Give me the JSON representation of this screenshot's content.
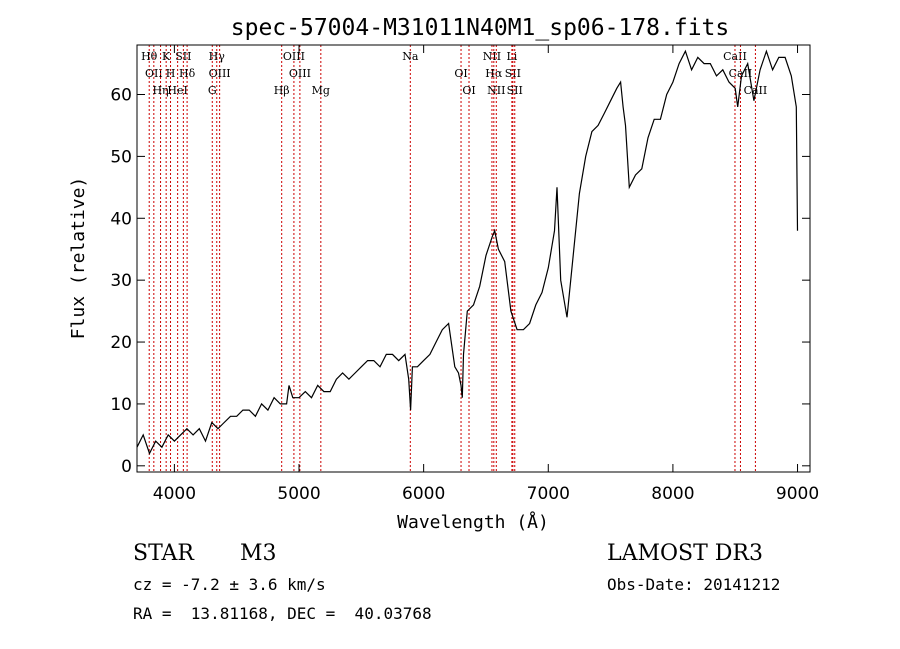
{
  "colors": {
    "frame": "#000000",
    "spectrum": "#000000",
    "lines": "#cc0000",
    "background": "#ffffff"
  },
  "chart_data": {
    "type": "line",
    "title": "spec-57004-M31011N40M1_sp06-178.fits",
    "xlabel": "Wavelength (Å)",
    "ylabel": "Flux (relative)",
    "xlim": [
      3700,
      9100
    ],
    "ylim": [
      -1,
      68
    ],
    "xticks": [
      4000,
      5000,
      6000,
      7000,
      8000,
      9000
    ],
    "yticks": [
      0,
      10,
      20,
      30,
      40,
      50,
      60
    ],
    "spectrum": {
      "x": [
        3700,
        3750,
        3800,
        3850,
        3900,
        3950,
        4000,
        4050,
        4100,
        4150,
        4200,
        4250,
        4300,
        4350,
        4400,
        4450,
        4500,
        4550,
        4600,
        4650,
        4700,
        4750,
        4800,
        4850,
        4900,
        4920,
        4950,
        5000,
        5050,
        5100,
        5150,
        5200,
        5250,
        5300,
        5350,
        5400,
        5450,
        5500,
        5550,
        5600,
        5650,
        5700,
        5750,
        5800,
        5850,
        5880,
        5895,
        5910,
        5950,
        6000,
        6050,
        6100,
        6150,
        6200,
        6250,
        6280,
        6300,
        6310,
        6320,
        6350,
        6400,
        6450,
        6500,
        6550,
        6570,
        6600,
        6650,
        6700,
        6750,
        6800,
        6850,
        6900,
        6950,
        7000,
        7050,
        7070,
        7100,
        7150,
        7200,
        7250,
        7300,
        7350,
        7400,
        7450,
        7500,
        7550,
        7580,
        7600,
        7620,
        7650,
        7700,
        7750,
        7800,
        7850,
        7900,
        7950,
        8000,
        8050,
        8100,
        8150,
        8200,
        8250,
        8300,
        8350,
        8400,
        8450,
        8500,
        8520,
        8550,
        8600,
        8650,
        8700,
        8750,
        8800,
        8850,
        8900,
        8950,
        8990,
        9000
      ],
      "y": [
        3,
        5,
        2,
        4,
        3,
        5,
        4,
        5,
        6,
        5,
        6,
        4,
        7,
        6,
        7,
        8,
        8,
        9,
        9,
        8,
        10,
        9,
        11,
        10,
        10,
        13,
        11,
        11,
        12,
        11,
        13,
        12,
        12,
        14,
        15,
        14,
        15,
        16,
        17,
        17,
        16,
        18,
        18,
        17,
        18,
        14,
        9,
        16,
        16,
        17,
        18,
        20,
        22,
        23,
        16,
        15,
        13,
        11,
        18,
        25,
        26,
        29,
        34,
        37,
        38,
        35,
        33,
        25,
        22,
        22,
        23,
        26,
        28,
        32,
        38,
        45,
        30,
        24,
        34,
        44,
        50,
        54,
        55,
        57,
        59,
        61,
        62,
        58,
        55,
        45,
        47,
        48,
        53,
        56,
        56,
        60,
        62,
        65,
        67,
        64,
        66,
        65,
        65,
        63,
        64,
        62,
        61,
        58,
        63,
        65,
        59,
        64,
        67,
        64,
        66,
        66,
        63,
        58,
        38
      ]
    },
    "lines": [
      {
        "wavelength": 3798,
        "label": "Hθ"
      },
      {
        "wavelength": 3835,
        "label": "OII"
      },
      {
        "wavelength": 3889,
        "label": "Hη"
      },
      {
        "wavelength": 3934,
        "label": "K"
      },
      {
        "wavelength": 3969,
        "label": "H"
      },
      {
        "wavelength": 4026,
        "label": "HeI"
      },
      {
        "wavelength": 4072,
        "label": "SII"
      },
      {
        "wavelength": 4102,
        "label": "Hδ"
      },
      {
        "wavelength": 4304,
        "label": "G"
      },
      {
        "wavelength": 4340,
        "label": "Hγ"
      },
      {
        "wavelength": 4363,
        "label": "OIII"
      },
      {
        "wavelength": 4861,
        "label": "Hβ"
      },
      {
        "wavelength": 4959,
        "label": "OIII"
      },
      {
        "wavelength": 5007,
        "label": "OIII"
      },
      {
        "wavelength": 5175,
        "label": "Mg"
      },
      {
        "wavelength": 5893,
        "label": "Na"
      },
      {
        "wavelength": 6300,
        "label": "OI"
      },
      {
        "wavelength": 6364,
        "label": "OI"
      },
      {
        "wavelength": 6548,
        "label": "NII"
      },
      {
        "wavelength": 6563,
        "label": "Hα"
      },
      {
        "wavelength": 6583,
        "label": "NII"
      },
      {
        "wavelength": 6708,
        "label": "Li"
      },
      {
        "wavelength": 6716,
        "label": "SII"
      },
      {
        "wavelength": 6731,
        "label": "SII"
      },
      {
        "wavelength": 8498,
        "label": "CaII"
      },
      {
        "wavelength": 8542,
        "label": "CaII"
      },
      {
        "wavelength": 8662,
        "label": "CaII"
      }
    ]
  },
  "info": {
    "object_class": "STAR",
    "subclass": "M3",
    "survey": "LAMOST DR3",
    "cz": "cz = -7.2 ± 3.6 km/s",
    "obs_date": "Obs-Date: 20141212",
    "coords": "RA =  13.81168, DEC =  40.03768"
  }
}
